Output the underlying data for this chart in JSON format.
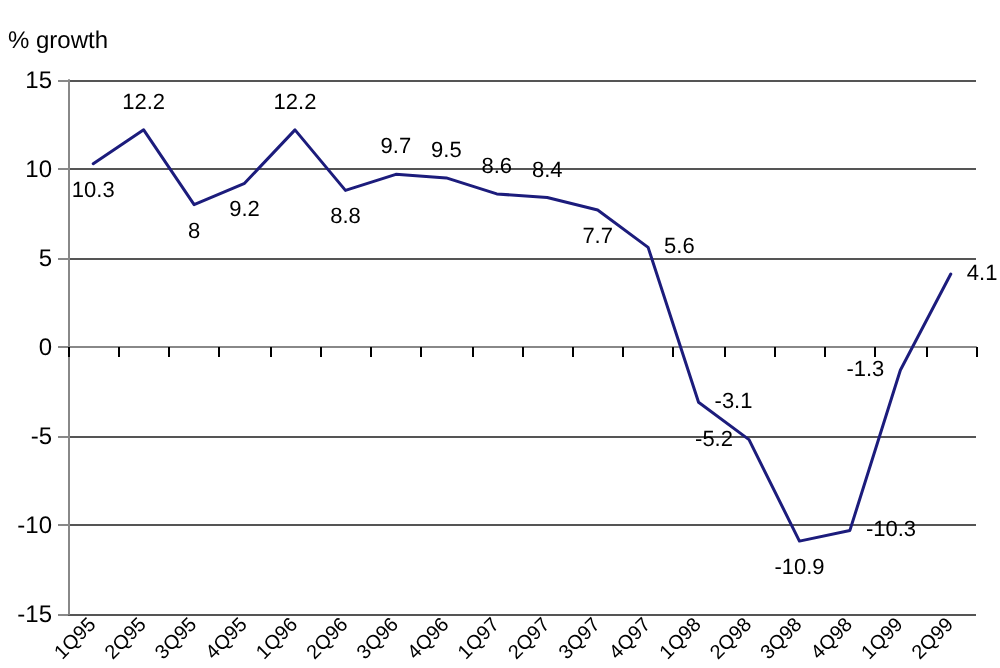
{
  "chart_data": {
    "type": "line",
    "ylabel": "% growth",
    "categories": [
      "1Q95",
      "2Q95",
      "3Q95",
      "4Q95",
      "1Q96",
      "2Q96",
      "3Q96",
      "4Q96",
      "1Q97",
      "2Q97",
      "3Q97",
      "4Q97",
      "1Q98",
      "2Q98",
      "3Q98",
      "4Q98",
      "1Q99",
      "2Q99"
    ],
    "series": [
      {
        "color": "#1c1c7c",
        "values": [
          10.3,
          12.2,
          8,
          9.2,
          12.2,
          8.8,
          9.7,
          9.5,
          8.6,
          8.4,
          7.7,
          5.6,
          -3.1,
          -5.2,
          -10.9,
          -10.3,
          -1.3,
          4.1
        ]
      }
    ],
    "ylim": [
      -15,
      15
    ],
    "yticks": [
      -15,
      -10,
      -5,
      0,
      5,
      10,
      15
    ],
    "grid": "y",
    "data_labels": true,
    "marker": "none",
    "line_style": "solid"
  }
}
